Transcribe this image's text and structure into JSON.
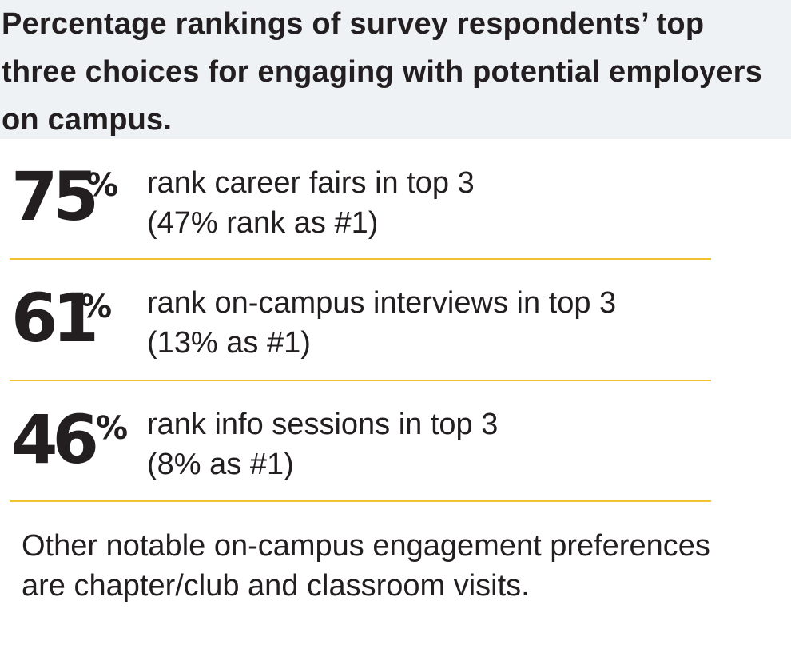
{
  "header": {
    "title": "Percentage rankings of survey respondents’ top three choices for engaging with potential employers on campus."
  },
  "stats": [
    {
      "number": "75",
      "percent_sign": "%",
      "line1": "rank career fairs in top 3",
      "line2": "(47% rank as #1)"
    },
    {
      "number": "61",
      "percent_sign": "%",
      "line1": "rank on-campus interviews in top 3",
      "line2": "(13% as #1)"
    },
    {
      "number": "46",
      "percent_sign": "%",
      "line1": "rank info sessions in top 3",
      "line2": "(8% as #1)"
    }
  ],
  "footnote": "Other notable on-campus engagement preferences are chapter/club and classroom visits.",
  "colors": {
    "header_bg": "#eef2f5",
    "divider": "#f2c233",
    "text": "#231f20"
  }
}
